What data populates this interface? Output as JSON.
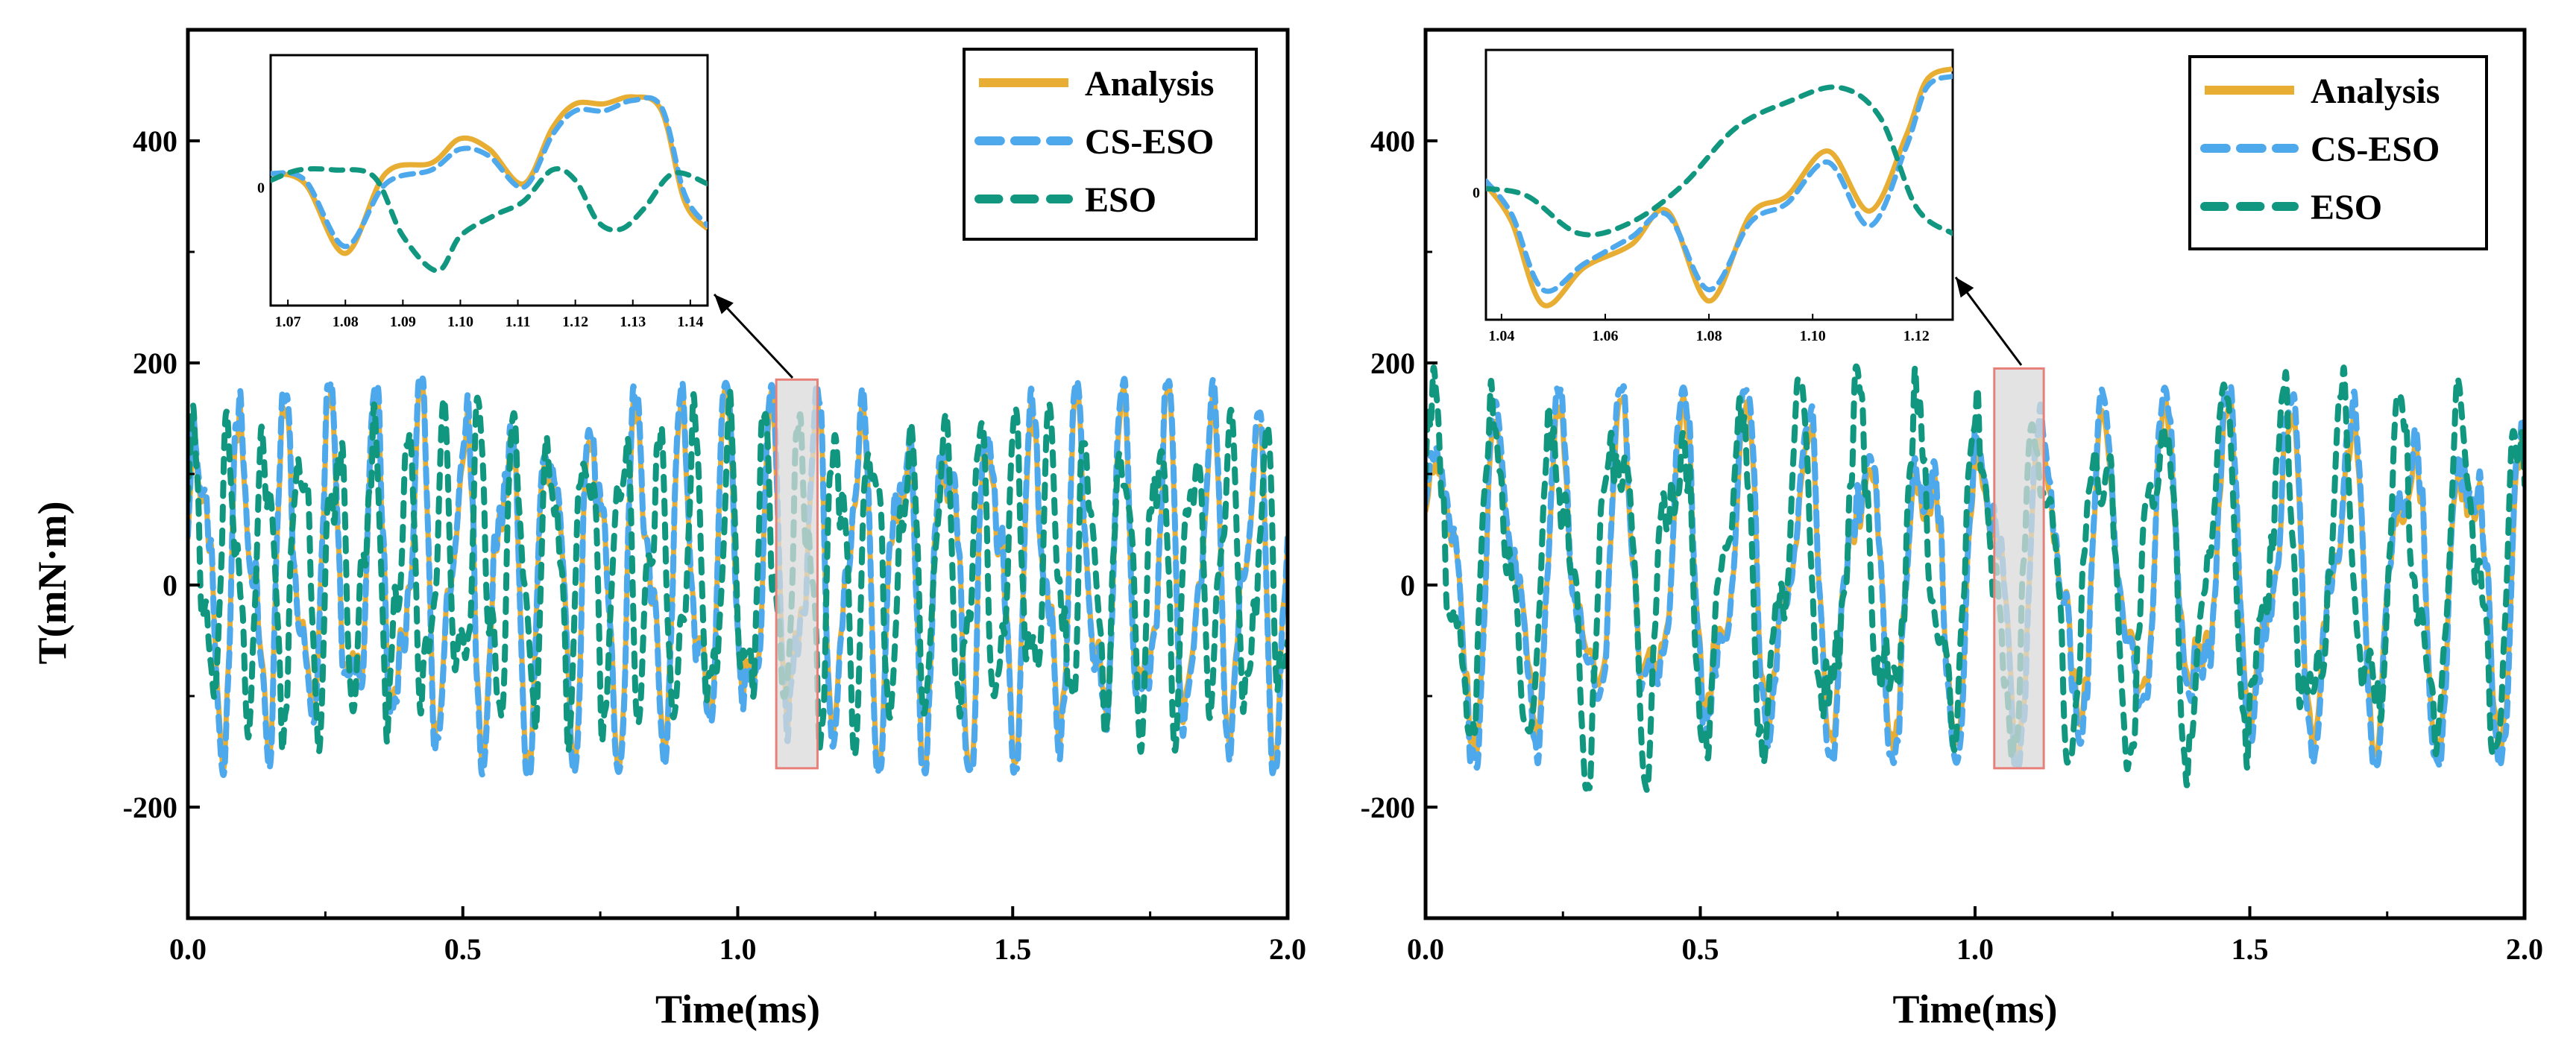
{
  "colors": {
    "analysis": "#E8AE33",
    "cs_eso": "#4EA8EC",
    "eso": "#11977F",
    "highlight_fill": "#D9D9D9",
    "highlight_stroke": "#E8807A"
  },
  "chart_data": [
    {
      "type": "line",
      "panel": "left",
      "xlabel": "Time(ms)",
      "ylabel": "T(mN·m)",
      "xlim": [
        0.0,
        2.0
      ],
      "ylim": [
        -300,
        500
      ],
      "xticks": [
        "0.0",
        "0.5",
        "1.0",
        "1.5",
        "2.0"
      ],
      "yticks": [
        "-200",
        "0",
        "200",
        "400"
      ],
      "legend": {
        "position": "top-right",
        "entries": [
          "Analysis",
          "CS-ESO",
          "ESO"
        ]
      },
      "highlight_region": {
        "x": [
          1.07,
          1.145
        ],
        "y": [
          -165,
          185
        ]
      },
      "series": [
        {
          "name": "Analysis",
          "style": "solid",
          "oscillation_period_ms": 0.08,
          "amplitude_range": [
            -160,
            175
          ]
        },
        {
          "name": "CS-ESO",
          "style": "dashed",
          "oscillation_period_ms": 0.08,
          "amplitude_range": [
            -165,
            180
          ]
        },
        {
          "name": "ESO",
          "style": "dashed",
          "oscillation_period_ms": 0.065,
          "amplitude_range": [
            -150,
            175
          ]
        }
      ],
      "inset": {
        "xlim": [
          1.067,
          1.143
        ],
        "xticks": [
          "1.07",
          "1.08",
          "1.09",
          "1.10",
          "1.11",
          "1.12",
          "1.13",
          "1.14"
        ],
        "ytick": "0",
        "series": {
          "Analysis": {
            "x": [
              1.067,
              1.073,
              1.08,
              1.087,
              1.095,
              1.1,
              1.105,
              1.111,
              1.116,
              1.12,
              1.125,
              1.13,
              1.135,
              1.139,
              1.143
            ],
            "y": [
              20,
              5,
              -95,
              20,
              35,
              70,
              55,
              5,
              85,
              120,
              120,
              130,
              110,
              -20,
              -60
            ]
          },
          "CS-ESO": {
            "x": [
              1.067,
              1.073,
              1.08,
              1.087,
              1.095,
              1.1,
              1.105,
              1.111,
              1.116,
              1.12,
              1.125,
              1.13,
              1.135,
              1.139,
              1.143
            ],
            "y": [
              20,
              10,
              -85,
              5,
              25,
              55,
              45,
              0,
              75,
              110,
              110,
              125,
              115,
              -10,
              -55
            ]
          },
          "ESO": {
            "x": [
              1.067,
              1.072,
              1.078,
              1.085,
              1.09,
              1.096,
              1.1,
              1.106,
              1.111,
              1.116,
              1.12,
              1.124,
              1.128,
              1.132,
              1.137,
              1.143
            ],
            "y": [
              10,
              25,
              25,
              15,
              -70,
              -120,
              -70,
              -40,
              -20,
              25,
              10,
              -50,
              -60,
              -30,
              20,
              5
            ]
          }
        }
      }
    },
    {
      "type": "line",
      "panel": "right",
      "xlabel": "Time(ms)",
      "ylabel": "",
      "xlim": [
        0.0,
        2.0
      ],
      "ylim": [
        -300,
        500
      ],
      "xticks": [
        "0.0",
        "0.5",
        "1.0",
        "1.5",
        "2.0"
      ],
      "yticks": [
        "-200",
        "0",
        "200",
        "400"
      ],
      "legend": {
        "position": "top-right",
        "entries": [
          "Analysis",
          "CS-ESO",
          "ESO"
        ]
      },
      "highlight_region": {
        "x": [
          1.035,
          1.125
        ],
        "y": [
          -165,
          195
        ]
      },
      "series": [
        {
          "name": "Analysis",
          "style": "solid",
          "oscillation_period_ms": 0.11,
          "amplitude_range": [
            -150,
            165
          ]
        },
        {
          "name": "CS-ESO",
          "style": "dashed",
          "oscillation_period_ms": 0.11,
          "amplitude_range": [
            -160,
            175
          ]
        },
        {
          "name": "ESO",
          "style": "dashed",
          "oscillation_period_ms": 0.11,
          "amplitude_range": [
            -180,
            195
          ]
        }
      ],
      "inset": {
        "xlim": [
          1.037,
          1.127
        ],
        "xticks": [
          "1.04",
          "1.06",
          "1.08",
          "1.10",
          "1.12"
        ],
        "ytick": "0",
        "series": {
          "Analysis": {
            "x": [
              1.037,
              1.042,
              1.048,
              1.056,
              1.065,
              1.072,
              1.08,
              1.088,
              1.095,
              1.103,
              1.111,
              1.118,
              1.122,
              1.127
            ],
            "y": [
              10,
              -40,
              -150,
              -100,
              -70,
              -25,
              -145,
              -30,
              -5,
              55,
              -25,
              75,
              150,
              165
            ]
          },
          "CS-ESO": {
            "x": [
              1.037,
              1.042,
              1.048,
              1.056,
              1.065,
              1.072,
              1.08,
              1.088,
              1.095,
              1.103,
              1.111,
              1.118,
              1.122,
              1.127
            ],
            "y": [
              15,
              -30,
              -130,
              -95,
              -60,
              -30,
              -130,
              -40,
              -15,
              40,
              -45,
              60,
              140,
              155
            ]
          },
          "ESO": {
            "x": [
              1.037,
              1.045,
              1.055,
              1.065,
              1.075,
              1.085,
              1.095,
              1.105,
              1.113,
              1.12,
              1.127
            ],
            "y": [
              5,
              -5,
              -55,
              -40,
              10,
              85,
              120,
              140,
              100,
              -20,
              -55
            ]
          }
        }
      }
    }
  ]
}
